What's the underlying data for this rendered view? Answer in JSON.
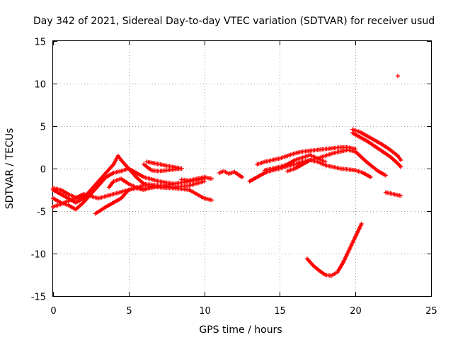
{
  "chart_data": {
    "type": "scatter",
    "title": "Day 342 of 2021, Sidereal Day-to-day VTEC variation (SDTVAR) for receiver usud",
    "xlabel": "GPS time / hours",
    "ylabel": "SDTVAR / TECUs",
    "xlim": [
      0,
      25
    ],
    "ylim": [
      -15,
      15
    ],
    "xticks": [
      "0",
      "5",
      "10",
      "15",
      "20",
      "25"
    ],
    "yticks": [
      "15",
      "10",
      "5",
      "0",
      "-5",
      "-10",
      "-15"
    ],
    "grid": true,
    "marker": "+",
    "color": "#ff0000",
    "series": [
      {
        "name": "track-a",
        "points": [
          [
            0,
            -3.5
          ],
          [
            0.5,
            -4
          ],
          [
            1,
            -4.3
          ],
          [
            1.5,
            -4.8
          ],
          [
            2,
            -4
          ],
          [
            2.5,
            -3
          ],
          [
            3,
            -2
          ],
          [
            3.5,
            -1
          ],
          [
            4,
            -0.5
          ],
          [
            4.5,
            -0.3
          ],
          [
            5,
            0
          ],
          [
            5.5,
            -0.5
          ],
          [
            6,
            -1
          ],
          [
            7,
            -1.5
          ],
          [
            8,
            -1.8
          ],
          [
            9,
            -1.5
          ],
          [
            10,
            -1.2
          ]
        ]
      },
      {
        "name": "track-b",
        "points": [
          [
            0,
            -2.5
          ],
          [
            0.5,
            -3
          ],
          [
            1,
            -3.5
          ],
          [
            1.5,
            -4
          ],
          [
            2,
            -3.5
          ],
          [
            2.5,
            -2.5
          ],
          [
            3,
            -1.5
          ],
          [
            3.5,
            -0.5
          ],
          [
            4,
            0.5
          ],
          [
            4.3,
            1.5
          ],
          [
            4.5,
            1
          ],
          [
            5,
            0
          ],
          [
            5.5,
            -1
          ],
          [
            6,
            -1.8
          ],
          [
            7,
            -2
          ],
          [
            8,
            -2.2
          ],
          [
            9,
            -2
          ],
          [
            10,
            -1.5
          ]
        ]
      },
      {
        "name": "track-c",
        "points": [
          [
            0,
            -4.5
          ],
          [
            0.5,
            -4.2
          ],
          [
            1,
            -3.8
          ],
          [
            1.5,
            -3.5
          ],
          [
            2,
            -3
          ],
          [
            3,
            -3.5
          ],
          [
            4,
            -3
          ],
          [
            5,
            -2.5
          ],
          [
            6,
            -2
          ],
          [
            7,
            -2.2
          ],
          [
            8,
            -2.3
          ],
          [
            9,
            -2.5
          ],
          [
            10,
            -3.5
          ],
          [
            10.5,
            -3.7
          ]
        ]
      },
      {
        "name": "track-d",
        "points": [
          [
            2.8,
            -5.3
          ],
          [
            3.5,
            -4.5
          ],
          [
            4,
            -4
          ],
          [
            4.5,
            -3.5
          ],
          [
            5,
            -2.5
          ],
          [
            5.5,
            -2.3
          ],
          [
            6,
            -2.5
          ],
          [
            6.5,
            -2.2
          ]
        ]
      },
      {
        "name": "track-e",
        "points": [
          [
            0,
            -2.3
          ],
          [
            0.5,
            -2.5
          ],
          [
            1,
            -3
          ],
          [
            1.5,
            -3.4
          ],
          [
            2,
            -3.2
          ]
        ]
      },
      {
        "name": "track-f",
        "points": [
          [
            6,
            0.5
          ],
          [
            6.5,
            -0.2
          ],
          [
            7,
            -0.3
          ],
          [
            7.5,
            -0.2
          ],
          [
            8,
            -0.1
          ],
          [
            8.5,
            0
          ],
          [
            6.2,
            0.8
          ]
        ]
      },
      {
        "name": "track-g",
        "points": [
          [
            3.7,
            -2.2
          ],
          [
            4,
            -1.5
          ],
          [
            4.5,
            -1.2
          ],
          [
            5,
            -1.8
          ],
          [
            5.5,
            -2.2
          ],
          [
            6,
            -2.4
          ],
          [
            7,
            -2.1
          ],
          [
            8,
            -1.8
          ]
        ]
      },
      {
        "name": "track-h",
        "points": [
          [
            8.5,
            -1.3
          ],
          [
            9,
            -1.4
          ],
          [
            9.5,
            -1.2
          ],
          [
            10,
            -1
          ],
          [
            10.5,
            -1.2
          ]
        ]
      },
      {
        "name": "track-i",
        "points": [
          [
            11,
            -0.5
          ],
          [
            11.3,
            -0.3
          ],
          [
            11.6,
            -0.6
          ],
          [
            12,
            -0.4
          ],
          [
            12.5,
            -1
          ],
          [
            12.3,
            -0.8
          ]
        ]
      },
      {
        "name": "track-j",
        "points": [
          [
            13,
            -1.5
          ],
          [
            13.5,
            -1
          ],
          [
            14,
            -0.5
          ],
          [
            14.5,
            -0.2
          ],
          [
            15,
            0
          ],
          [
            15.5,
            0.3
          ],
          [
            16,
            0.5
          ],
          [
            16.5,
            0.8
          ],
          [
            17,
            1
          ],
          [
            17.5,
            1.2
          ],
          [
            18,
            1.5
          ],
          [
            18.5,
            1.8
          ],
          [
            19,
            2
          ],
          [
            19.5,
            2.2
          ],
          [
            20,
            2
          ],
          [
            20.3,
            1.5
          ],
          [
            20.6,
            1
          ],
          [
            21,
            0.4
          ],
          [
            21.5,
            -0.3
          ],
          [
            22,
            -0.8
          ]
        ]
      },
      {
        "name": "track-k",
        "points": [
          [
            13.5,
            0.5
          ],
          [
            14,
            0.8
          ],
          [
            14.5,
            1
          ],
          [
            15,
            1.2
          ],
          [
            15.5,
            1.5
          ],
          [
            16,
            1.8
          ],
          [
            16.5,
            2
          ],
          [
            17,
            2.1
          ],
          [
            17.5,
            2.2
          ],
          [
            18,
            2.3
          ],
          [
            18.5,
            2.4
          ],
          [
            19,
            2.5
          ],
          [
            19.5,
            2.5
          ],
          [
            20,
            2.3
          ]
        ]
      },
      {
        "name": "track-l",
        "points": [
          [
            15.5,
            -0.3
          ],
          [
            16,
            0
          ],
          [
            16.5,
            0.5
          ],
          [
            17,
            1
          ],
          [
            17.5,
            0.8
          ],
          [
            18,
            0.4
          ],
          [
            18.5,
            0.2
          ],
          [
            19,
            0
          ],
          [
            19.5,
            -0.1
          ],
          [
            20,
            -0.2
          ],
          [
            20.5,
            -0.5
          ],
          [
            21,
            -1
          ]
        ]
      },
      {
        "name": "track-m",
        "points": [
          [
            14,
            -0.2
          ],
          [
            14.5,
            0
          ],
          [
            15,
            0.2
          ],
          [
            15.5,
            0.5
          ],
          [
            16,
            1
          ],
          [
            16.5,
            1.3
          ],
          [
            17,
            1.6
          ],
          [
            17.5,
            1.2
          ],
          [
            18,
            0.8
          ]
        ]
      },
      {
        "name": "track-n",
        "points": [
          [
            19.8,
            4.6
          ],
          [
            20.3,
            4.3
          ],
          [
            20.8,
            3.8
          ],
          [
            21.3,
            3.3
          ],
          [
            21.8,
            2.8
          ],
          [
            22.3,
            2.2
          ],
          [
            22.8,
            1.5
          ],
          [
            23,
            1
          ]
        ]
      },
      {
        "name": "track-o",
        "points": [
          [
            19.8,
            4.2
          ],
          [
            20.3,
            3.7
          ],
          [
            20.8,
            3.2
          ],
          [
            21.3,
            2.6
          ],
          [
            21.8,
            2
          ],
          [
            22.3,
            1.4
          ],
          [
            22.8,
            0.6
          ],
          [
            23,
            0.2
          ]
        ]
      },
      {
        "name": "track-p",
        "points": [
          [
            22,
            -2.8
          ],
          [
            22.5,
            -3
          ],
          [
            23,
            -3.2
          ]
        ]
      },
      {
        "name": "track-q",
        "points": [
          [
            16.8,
            -10.6
          ],
          [
            17.2,
            -11.4
          ],
          [
            17.6,
            -12
          ],
          [
            18,
            -12.5
          ],
          [
            18.4,
            -12.6
          ],
          [
            18.8,
            -12.2
          ],
          [
            19.2,
            -11
          ],
          [
            19.6,
            -9.5
          ],
          [
            20,
            -8
          ],
          [
            20.4,
            -6.5
          ]
        ]
      },
      {
        "name": "track-r",
        "points": [
          [
            22.8,
            10.9
          ]
        ]
      }
    ]
  }
}
